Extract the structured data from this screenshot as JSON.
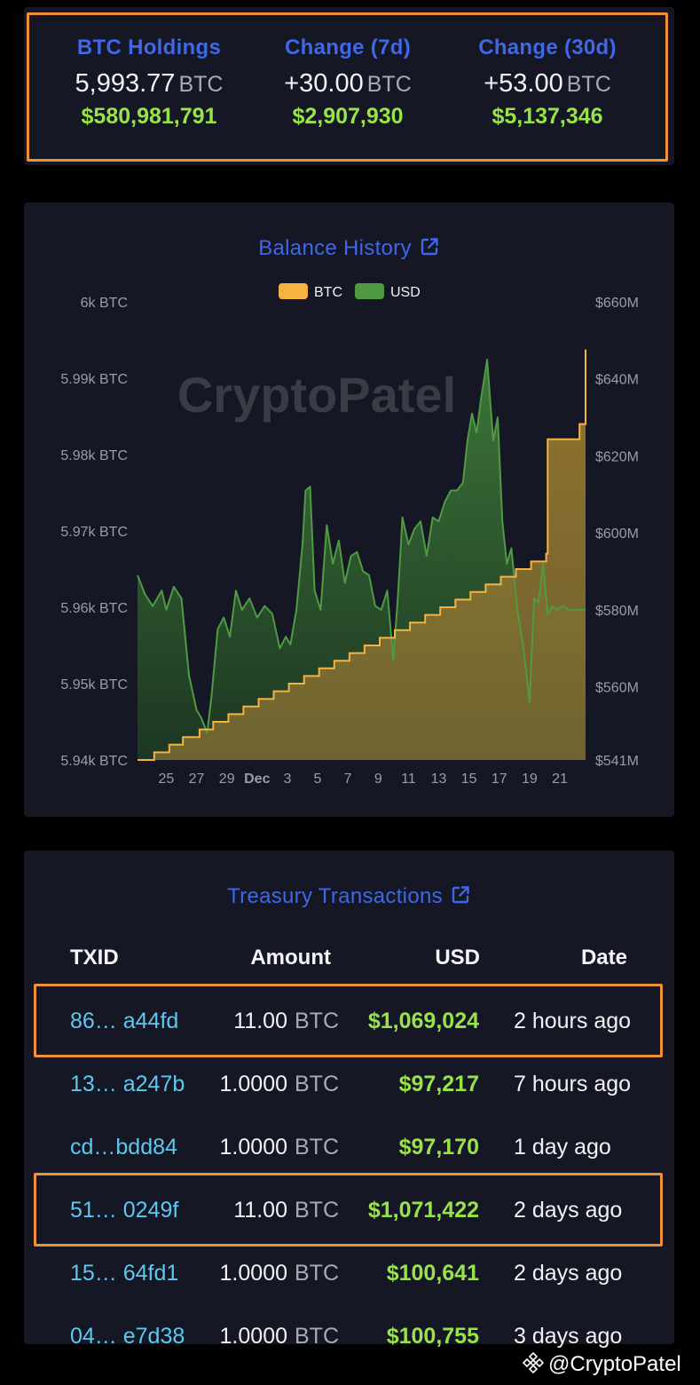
{
  "summary": {
    "holdings": {
      "label": "BTC Holdings",
      "value": "5,993.77",
      "unit": "BTC",
      "usd": "$580,981,791"
    },
    "change7d": {
      "label": "Change (7d)",
      "value": "+30.00",
      "unit": "BTC",
      "usd": "$2,907,930"
    },
    "change30d": {
      "label": "Change (30d)",
      "value": "+53.00",
      "unit": "BTC",
      "usd": "$5,137,346"
    }
  },
  "balance_history": {
    "title": "Balance History",
    "link_icon": "external-link-icon",
    "watermark": "CryptoPatel",
    "legend": [
      {
        "name": "BTC",
        "color": "#f5b342"
      },
      {
        "name": "USD",
        "color": "#4f9a43"
      }
    ]
  },
  "chart_data": {
    "type": "area",
    "x_ticks": [
      "25",
      "27",
      "29",
      "Dec",
      "3",
      "5",
      "7",
      "9",
      "11",
      "13",
      "15",
      "17",
      "19",
      "21"
    ],
    "y_left_ticks": [
      "6k BTC",
      "5.99k BTC",
      "5.98k BTC",
      "5.97k BTC",
      "5.96k BTC",
      "5.95k BTC",
      "5.94k BTC"
    ],
    "y_right_ticks": [
      "$660M",
      "$640M",
      "$620M",
      "$600M",
      "$580M",
      "$560M",
      "$541M"
    ],
    "y_left_range": [
      5940,
      6000
    ],
    "y_right_range": [
      541,
      660
    ],
    "x_range": [
      23.1,
      52.7
    ],
    "series": [
      {
        "name": "BTC",
        "axis": "left",
        "color": "#f5b342",
        "x": [
          23.1,
          24.2,
          25.2,
          26.1,
          27.2,
          28.1,
          29.1,
          30.1,
          31.1,
          32.1,
          33.1,
          34.1,
          35.1,
          36.1,
          37.1,
          38.1,
          39.1,
          40.1,
          41.1,
          42.1,
          43.1,
          44.1,
          45.1,
          46.1,
          47.1,
          48.1,
          49.1,
          50.1,
          50.2,
          52.3,
          52.7
        ],
        "values": [
          5940.0,
          5941.0,
          5942.0,
          5943.0,
          5944.0,
          5945.0,
          5946.0,
          5947.0,
          5948.0,
          5949.0,
          5950.0,
          5951.0,
          5952.0,
          5953.0,
          5954.0,
          5955.0,
          5956.0,
          5957.0,
          5958.0,
          5959.0,
          5960.0,
          5961.0,
          5962.0,
          5963.0,
          5964.0,
          5965.0,
          5966.0,
          5967.0,
          5982.0,
          5984.0,
          5993.77
        ]
      },
      {
        "name": "USD",
        "axis": "right",
        "color": "#4f9a43",
        "x": [
          23.1,
          23.6,
          24.1,
          24.7,
          25.0,
          25.5,
          26.0,
          26.5,
          27.0,
          27.3,
          27.7,
          28.0,
          28.4,
          28.8,
          29.2,
          29.6,
          30.0,
          30.5,
          31.0,
          31.5,
          32.0,
          32.5,
          32.9,
          33.2,
          33.6,
          34.0,
          34.2,
          34.5,
          34.8,
          35.2,
          35.6,
          36.0,
          36.4,
          36.8,
          37.2,
          37.6,
          38.0,
          38.4,
          38.8,
          39.2,
          39.6,
          40.0,
          40.3,
          40.6,
          41.0,
          41.4,
          41.8,
          42.2,
          42.6,
          43.0,
          43.4,
          43.8,
          44.2,
          44.6,
          44.9,
          45.2,
          45.5,
          45.8,
          46.2,
          46.6,
          46.9,
          47.2,
          47.5,
          47.8,
          48.2,
          48.6,
          49.0,
          49.3,
          49.6,
          49.9,
          50.2,
          50.5,
          50.8,
          51.2,
          51.6,
          52.0,
          52.4,
          52.7
        ],
        "values": [
          589,
          584,
          581,
          585,
          580,
          586,
          583,
          563,
          554,
          552,
          548,
          558,
          575,
          578,
          573,
          585,
          580,
          583,
          578,
          581,
          579,
          570,
          573,
          571,
          580,
          597,
          611,
          612,
          585,
          580,
          602,
          592,
          598,
          587,
          594,
          595,
          590,
          589,
          581,
          580,
          585,
          567,
          583,
          604,
          597,
          601,
          603,
          594,
          604,
          603,
          608,
          611,
          611,
          613,
          624,
          631,
          626,
          635,
          645,
          624,
          630,
          603,
          592,
          596,
          580,
          570,
          556,
          583,
          582,
          592,
          579,
          581,
          580,
          581,
          580,
          580,
          580,
          580
        ]
      }
    ]
  },
  "transactions": {
    "title": "Treasury Transactions",
    "link_icon": "external-link-icon",
    "columns": [
      "TXID",
      "Amount",
      "USD",
      "Date"
    ],
    "rows": [
      {
        "txid": "86… a44fd",
        "amount": "11.00",
        "unit": "BTC",
        "usd": "$1,069,024",
        "date": "2 hours ago",
        "highlighted": true
      },
      {
        "txid": "13… a247b",
        "amount": "1.0000",
        "unit": "BTC",
        "usd": "$97,217",
        "date": "7 hours ago",
        "highlighted": false
      },
      {
        "txid": "cd…bdd84",
        "amount": "1.0000",
        "unit": "BTC",
        "usd": "$97,170",
        "date": "1 day ago",
        "highlighted": false
      },
      {
        "txid": "51… 0249f",
        "amount": "11.00",
        "unit": "BTC",
        "usd": "$1,071,422",
        "date": "2 days ago",
        "highlighted": true
      },
      {
        "txid": "15… 64fd1",
        "amount": "1.0000",
        "unit": "BTC",
        "usd": "$100,641",
        "date": "2 days ago",
        "highlighted": false
      },
      {
        "txid": "04… e7d38",
        "amount": "1.0000",
        "unit": "BTC",
        "usd": "$100,755",
        "date": "3 days ago",
        "highlighted": false
      }
    ]
  },
  "watermark": {
    "handle": "@CryptoPatel",
    "icon": "binance-logo-icon"
  },
  "colors": {
    "accent": "#3f67e6",
    "positive": "#99e34a",
    "highlight": "#f0913a",
    "txid": "#5dc8f0"
  }
}
